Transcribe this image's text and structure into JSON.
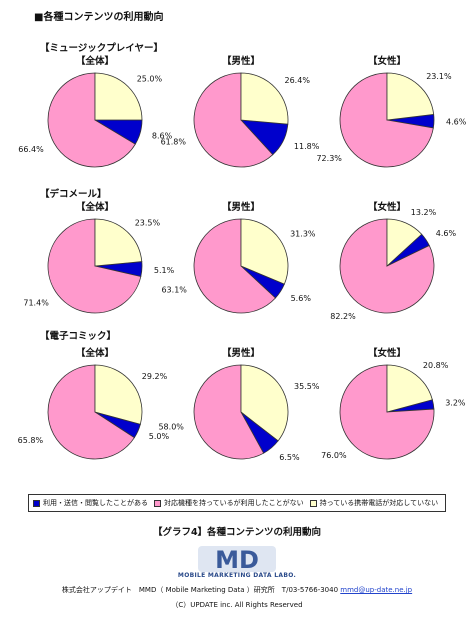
{
  "title": "■各種コンテンツの利用動向",
  "colors": {
    "blue": "#0000cc",
    "pink": "#ff99cc",
    "yellow": "#ffffcc",
    "stroke": "#333333"
  },
  "chart_data": [
    {
      "type": "pie",
      "section": "【ミュージックプレイヤー】",
      "title": "【全体】",
      "categories": [
        "利用・送信・閲覧したことがある",
        "対応機種を持っているが利用したことがない",
        "持っている携帯電話が対応していない"
      ],
      "values": [
        8.6,
        66.4,
        25.0
      ],
      "labels": [
        "8.6%",
        "66.4%",
        "25.0%"
      ]
    },
    {
      "type": "pie",
      "title": "【男性】",
      "categories": [
        "利用・送信・閲覧したことがある",
        "対応機種を持っているが利用したことがない",
        "持っている携帯電話が対応していない"
      ],
      "values": [
        11.8,
        61.8,
        26.4
      ],
      "labels": [
        "11.8%",
        "61.8%",
        "26.4%"
      ]
    },
    {
      "type": "pie",
      "title": "【女性】",
      "categories": [
        "利用・送信・閲覧したことがある",
        "対応機種を持っているが利用したことがない",
        "持っている携帯電話が対応していない"
      ],
      "values": [
        4.6,
        72.3,
        23.1
      ],
      "labels": [
        "4.6%",
        "72.3%",
        "23.1%"
      ]
    },
    {
      "type": "pie",
      "section": "【デコメール】",
      "title": "【全体】",
      "categories": [
        "利用・送信・閲覧したことがある",
        "対応機種を持っているが利用したことがない",
        "持っている携帯電話が対応していない"
      ],
      "values": [
        5.1,
        71.4,
        23.5
      ],
      "labels": [
        "5.1%",
        "71.4%",
        "23.5%"
      ]
    },
    {
      "type": "pie",
      "title": "【男性】",
      "categories": [
        "利用・送信・閲覧したことがある",
        "対応機種を持っているが利用したことがない",
        "持っている携帯電話が対応していない"
      ],
      "values": [
        5.6,
        63.1,
        31.3
      ],
      "labels": [
        "5.6%",
        "63.1%",
        "31.3%"
      ]
    },
    {
      "type": "pie",
      "title": "【女性】",
      "categories": [
        "利用・送信・閲覧したことがある",
        "対応機種を持っているが利用したことがない",
        "持っている携帯電話が対応していない"
      ],
      "values": [
        4.6,
        82.2,
        13.2
      ],
      "labels": [
        "4.6%",
        "82.2%",
        "13.2%"
      ]
    },
    {
      "type": "pie",
      "section": "【電子コミック】",
      "title": "【全体】",
      "categories": [
        "利用・送信・閲覧したことがある",
        "対応機種を持っているが利用したことがない",
        "持っている携帯電話が対応していない"
      ],
      "values": [
        5.0,
        65.8,
        29.2
      ],
      "labels": [
        "5.0%",
        "65.8%",
        "29.2%"
      ]
    },
    {
      "type": "pie",
      "title": "【男性】",
      "categories": [
        "利用・送信・閲覧したことがある",
        "対応機種を持っているが利用したことがない",
        "持っている携帯電話が対応していない"
      ],
      "values": [
        6.5,
        58.0,
        35.5
      ],
      "labels": [
        "6.5%",
        "58.0%",
        "35.5%"
      ]
    },
    {
      "type": "pie",
      "title": "【女性】",
      "categories": [
        "利用・送信・閲覧したことがある",
        "対応機種を持っているが利用したことがない",
        "持っている携帯電話が対応していない"
      ],
      "values": [
        3.2,
        76.0,
        20.8
      ],
      "labels": [
        "3.2%",
        "76.0%",
        "20.8%"
      ]
    }
  ],
  "legend": [
    {
      "label": "利用・送信・閲覧したことがある",
      "color": "#0000cc"
    },
    {
      "label": "対応機種を持っているが利用したことがない",
      "color": "#ff99cc"
    },
    {
      "label": "持っている携帯電話が対応していない",
      "color": "#ffffcc"
    }
  ],
  "caption": "【グラフ4】各種コンテンツの利用動向",
  "logo": {
    "mark": "MD",
    "subtitle": "MOBILE MARKETING DATA LABO."
  },
  "footer": {
    "company": "株式会社アップデイト　MMD（ Mobile Marketing Data ）研究所　T/03-5766-3040",
    "email": "mmd@up-date.ne.jp",
    "copyright": "（C）UPDATE inc. All Rights Reserved"
  }
}
